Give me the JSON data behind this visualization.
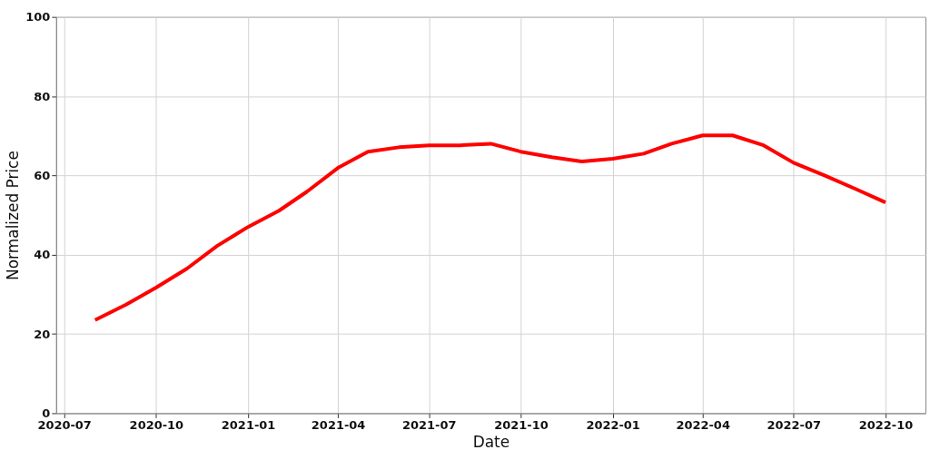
{
  "chart_data": {
    "type": "line",
    "xlabel": "Date",
    "ylabel": "Normalized Price",
    "x": [
      "2020-08",
      "2020-09",
      "2020-10",
      "2020-11",
      "2020-12",
      "2021-01",
      "2021-02",
      "2021-03",
      "2021-04",
      "2021-05",
      "2021-06",
      "2021-07",
      "2021-08",
      "2021-09",
      "2021-10",
      "2021-11",
      "2021-12",
      "2022-01",
      "2022-02",
      "2022-03",
      "2022-04",
      "2022-05",
      "2022-06",
      "2022-07",
      "2022-08",
      "2022-09",
      "2022-10"
    ],
    "series": [
      {
        "color": "#ff0000",
        "values": [
          23.5,
          27.4,
          31.7,
          36.5,
          42.2,
          47.0,
          51.1,
          55.9,
          61.9,
          66.0,
          67.1,
          67.6,
          67.6,
          68.0,
          66.0,
          64.6,
          63.5,
          64.2,
          65.5,
          68.0,
          70.1,
          70.1,
          67.6,
          63.2,
          60.0,
          56.6,
          53.2
        ]
      }
    ],
    "xlim": [
      "2020-06-23",
      "2022-11-10"
    ],
    "xticks": [
      "2020-07",
      "2020-10",
      "2021-01",
      "2021-04",
      "2021-07",
      "2021-10",
      "2022-01",
      "2022-04",
      "2022-07",
      "2022-10"
    ],
    "ylim": [
      0,
      100
    ],
    "yticks": [
      0,
      20,
      40,
      60,
      80,
      100
    ],
    "grid": true,
    "marker": "none",
    "line_style": "solid"
  }
}
